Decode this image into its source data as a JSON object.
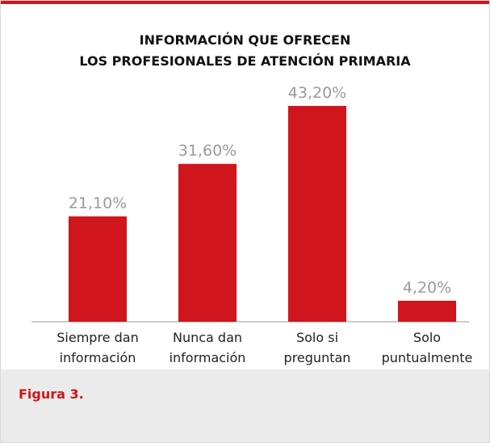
{
  "chart_data": {
    "type": "bar",
    "title": "INFORMACIÓN QUE OFRECEN\nLOS PROFESIONALES DE ATENCIÓN PRIMARIA",
    "categories": [
      "Siempre dan información",
      "Nunca dan información",
      "Solo si preguntan",
      "Solo puntualmente"
    ],
    "values": [
      21.1,
      31.6,
      43.2,
      4.2
    ],
    "value_labels": [
      "21,10%",
      "31,60%",
      "43,20%",
      "4,20%"
    ],
    "color": "#d0151c"
  },
  "caption": "Figura 3."
}
